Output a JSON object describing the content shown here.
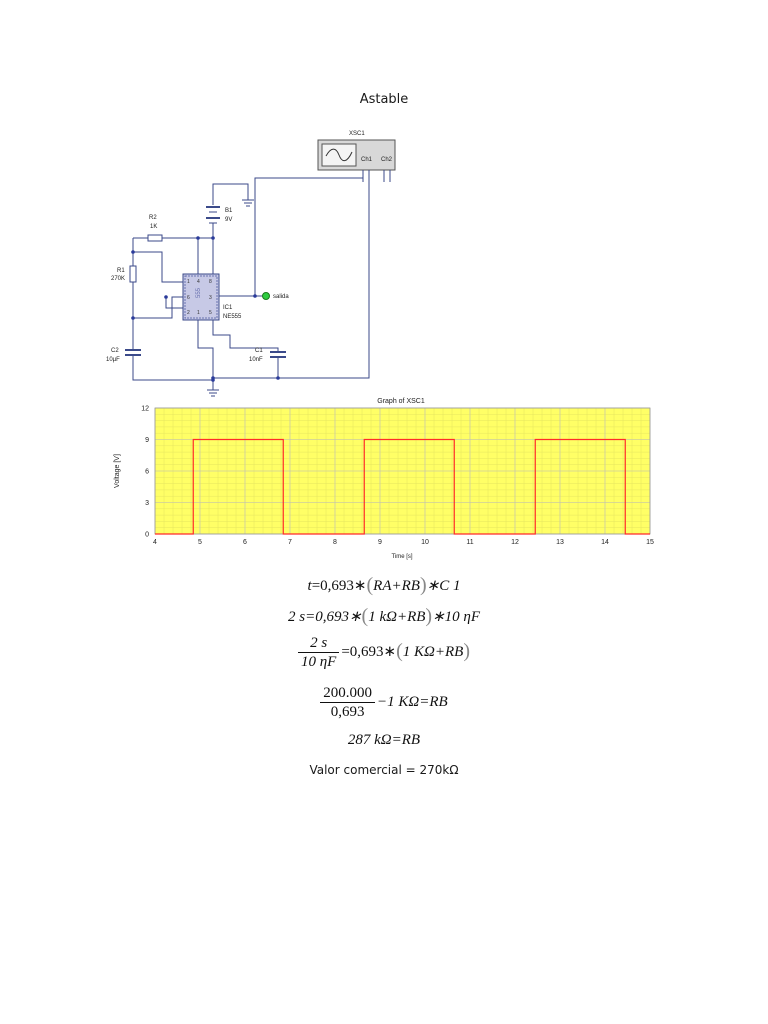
{
  "document": {
    "title": "Astable",
    "note": "Valor comercial = 270kΩ"
  },
  "schematic": {
    "scope_label": "XSC1",
    "ch1": "Ch1",
    "ch2": "Ch2",
    "battery_label": "B1",
    "battery_value": "9V",
    "r2_label": "R2",
    "r2_value": "1K",
    "r1_label": "R1",
    "r1_value": "270K",
    "ic_label": "IC1",
    "ic_value": "NE555",
    "ic_chip_text": "555",
    "output_label": "salida",
    "c1_label": "C1",
    "c1_value": "10nF",
    "c2_label": "C2",
    "c2_value": "10µF"
  },
  "chart_data": {
    "type": "line",
    "title": "Graph of XSC1",
    "xlabel": "Time [s]",
    "ylabel": "Voltage [V]",
    "xlim": [
      4,
      15
    ],
    "ylim": [
      0,
      12
    ],
    "xticks": [
      4,
      5,
      6,
      7,
      8,
      9,
      10,
      11,
      12,
      13,
      14,
      15
    ],
    "yticks": [
      0,
      3,
      6,
      9,
      12
    ],
    "grid": true,
    "colors": {
      "background": "#ffff66",
      "minor_grid": "#e0e060",
      "major_grid": "#bfbfbf",
      "series": "#ff2a2a"
    },
    "series": [
      {
        "x": [
          4,
          4.85,
          4.85,
          6.85,
          6.85,
          8.65,
          8.65,
          10.65,
          10.65,
          12.45,
          12.45,
          14.45,
          14.45,
          15
        ],
        "y": [
          0,
          0,
          9,
          9,
          0,
          0,
          9,
          9,
          0,
          0,
          9,
          9,
          0,
          0
        ]
      }
    ]
  },
  "equations": {
    "eq1": {
      "t": "t",
      "rest": "=0,693∗",
      "inner": "RA+RB",
      "tail": "∗C 1"
    },
    "eq2": {
      "lhs": "2 s=0,693∗",
      "inner": "1 kΩ+RB",
      "tail": "∗10 ηF"
    },
    "eq3": {
      "num": "2 s",
      "den": "10 ηF",
      "rest": "=0,693∗",
      "inner": "1 KΩ+RB"
    },
    "eq4": {
      "num": "200.000",
      "den": "0,693",
      "rest": "−1 KΩ=RB"
    },
    "eq5": {
      "text": "287 kΩ=RB"
    }
  }
}
